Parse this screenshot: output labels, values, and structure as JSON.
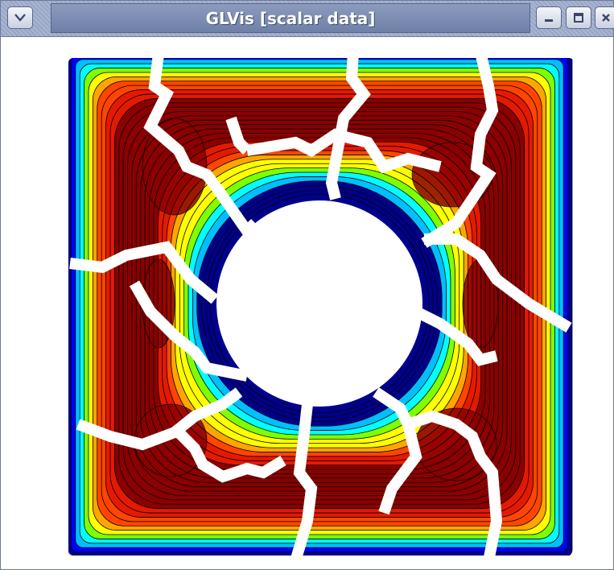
{
  "window": {
    "title": "GLVis [scalar data]",
    "buttons": [
      "window-menu",
      "minimize",
      "maximize",
      "close"
    ],
    "colors": {
      "titlebar": "#a9b6d2",
      "title_text": "#ffffff",
      "background": "#ffffff"
    }
  },
  "visualization": {
    "colormap": [
      "#00008b",
      "#0000ff",
      "#00bfff",
      "#00ffff",
      "#7fff00",
      "#ffff00",
      "#ffa500",
      "#ff4500",
      "#e41a00",
      "#8b0000"
    ],
    "contour_color": "#000000"
  }
}
